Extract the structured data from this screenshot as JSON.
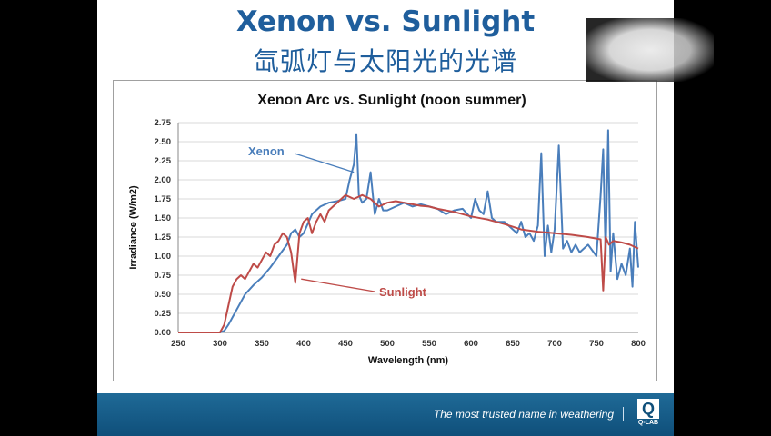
{
  "slide": {
    "title": "Xenon vs. Sunlight",
    "subtitle": "氙弧灯与太阳光的光谱"
  },
  "footer": {
    "tagline": "The most trusted name in weathering",
    "logo_letter": "Q",
    "logo_text": "Q-LAB"
  },
  "colors": {
    "title": "#1f5e9c",
    "xenon": "#4a7ebb",
    "sunlight": "#be4b48",
    "footer": "#0f4f7a"
  },
  "chart_data": {
    "type": "line",
    "title": "Xenon Arc vs. Sunlight (noon summer)",
    "xlabel": "Wavelength (nm)",
    "ylabel": "Irradiance (W/m2)",
    "xlim": [
      250,
      800
    ],
    "ylim": [
      0,
      2.75
    ],
    "xticks": [
      250,
      300,
      350,
      400,
      450,
      500,
      550,
      600,
      650,
      700,
      750,
      800
    ],
    "yticks": [
      "0.00",
      "0.25",
      "0.50",
      "0.75",
      "1.00",
      "1.25",
      "1.50",
      "1.75",
      "2.00",
      "2.25",
      "2.50",
      "2.75"
    ],
    "grid": true,
    "annotations": [
      {
        "text": "Xenon",
        "series": "Xenon"
      },
      {
        "text": "Sunlight",
        "series": "Sunlight"
      }
    ],
    "series": [
      {
        "name": "Xenon",
        "x": [
          250,
          270,
          290,
          300,
          305,
          310,
          320,
          330,
          340,
          350,
          360,
          370,
          380,
          385,
          390,
          395,
          400,
          410,
          420,
          430,
          440,
          450,
          455,
          460,
          463,
          466,
          470,
          475,
          480,
          485,
          490,
          495,
          500,
          510,
          520,
          530,
          540,
          550,
          560,
          570,
          580,
          590,
          600,
          605,
          610,
          615,
          620,
          625,
          630,
          640,
          650,
          655,
          660,
          665,
          670,
          675,
          680,
          684,
          688,
          692,
          696,
          700,
          705,
          710,
          715,
          720,
          725,
          730,
          740,
          750,
          755,
          758,
          761,
          764,
          767,
          770,
          775,
          780,
          785,
          790,
          793,
          796,
          800
        ],
        "y": [
          0,
          0,
          0,
          0,
          0.02,
          0.1,
          0.3,
          0.5,
          0.62,
          0.72,
          0.85,
          1.0,
          1.15,
          1.3,
          1.35,
          1.25,
          1.3,
          1.55,
          1.65,
          1.7,
          1.72,
          1.75,
          2.0,
          2.2,
          2.6,
          1.8,
          1.7,
          1.75,
          2.1,
          1.55,
          1.75,
          1.6,
          1.6,
          1.65,
          1.7,
          1.65,
          1.68,
          1.65,
          1.62,
          1.55,
          1.6,
          1.62,
          1.5,
          1.75,
          1.6,
          1.55,
          1.85,
          1.5,
          1.45,
          1.45,
          1.35,
          1.3,
          1.45,
          1.25,
          1.3,
          1.2,
          1.4,
          2.35,
          1.0,
          1.4,
          1.05,
          1.35,
          2.45,
          1.1,
          1.2,
          1.05,
          1.15,
          1.05,
          1.15,
          1.0,
          1.8,
          2.4,
          1.0,
          2.65,
          0.8,
          1.3,
          0.7,
          0.9,
          0.75,
          1.1,
          0.6,
          1.45,
          0.85
        ]
      },
      {
        "name": "Sunlight",
        "x": [
          250,
          270,
          290,
          300,
          305,
          310,
          315,
          320,
          325,
          330,
          335,
          340,
          345,
          350,
          355,
          360,
          365,
          370,
          375,
          380,
          385,
          390,
          395,
          400,
          405,
          410,
          415,
          420,
          425,
          430,
          440,
          450,
          460,
          470,
          480,
          490,
          500,
          510,
          520,
          530,
          540,
          550,
          560,
          570,
          580,
          590,
          600,
          620,
          640,
          660,
          680,
          700,
          720,
          740,
          755,
          758,
          761,
          763,
          765,
          770,
          780,
          790,
          800
        ],
        "y": [
          0,
          0,
          0,
          0,
          0.1,
          0.35,
          0.6,
          0.7,
          0.75,
          0.7,
          0.8,
          0.9,
          0.85,
          0.95,
          1.05,
          1.0,
          1.15,
          1.2,
          1.3,
          1.25,
          1.05,
          0.65,
          1.3,
          1.45,
          1.5,
          1.3,
          1.45,
          1.55,
          1.45,
          1.6,
          1.7,
          1.8,
          1.75,
          1.8,
          1.75,
          1.65,
          1.7,
          1.72,
          1.7,
          1.68,
          1.66,
          1.65,
          1.62,
          1.6,
          1.58,
          1.55,
          1.52,
          1.48,
          1.42,
          1.35,
          1.32,
          1.3,
          1.28,
          1.25,
          1.22,
          0.55,
          1.25,
          1.2,
          1.15,
          1.2,
          1.18,
          1.15,
          1.1
        ]
      }
    ]
  }
}
